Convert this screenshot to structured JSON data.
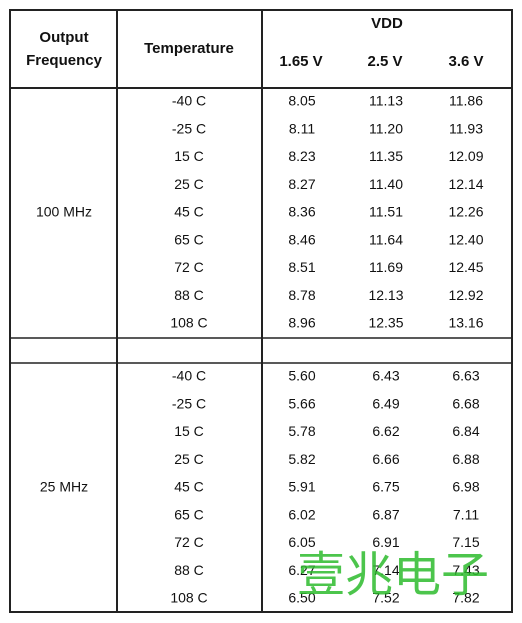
{
  "header": {
    "frequency": [
      "Output",
      "Frequency"
    ],
    "temperature": "Temperature",
    "vdd": "VDD",
    "voltages": [
      "1.65 V",
      "2.5 V",
      "3.6 V"
    ]
  },
  "groups": [
    {
      "frequency": "100 MHz",
      "rows": [
        [
          "-40 C",
          "8.05",
          "11.13",
          "11.86"
        ],
        [
          "-25 C",
          "8.11",
          "11.20",
          "11.93"
        ],
        [
          "15 C",
          "8.23",
          "11.35",
          "12.09"
        ],
        [
          "25 C",
          "8.27",
          "11.40",
          "12.14"
        ],
        [
          "45 C",
          "8.36",
          "11.51",
          "12.26"
        ],
        [
          "65 C",
          "8.46",
          "11.64",
          "12.40"
        ],
        [
          "72 C",
          "8.51",
          "11.69",
          "12.45"
        ],
        [
          "88 C",
          "8.78",
          "12.13",
          "12.92"
        ],
        [
          "108 C",
          "8.96",
          "12.35",
          "13.16"
        ]
      ]
    },
    {
      "frequency": "25 MHz",
      "rows": [
        [
          "-40 C",
          "5.60",
          "6.43",
          "6.63"
        ],
        [
          "-25 C",
          "5.66",
          "6.49",
          "6.68"
        ],
        [
          "15 C",
          "5.78",
          "6.62",
          "6.84"
        ],
        [
          "25 C",
          "5.82",
          "6.66",
          "6.88"
        ],
        [
          "45 C",
          "5.91",
          "6.75",
          "6.98"
        ],
        [
          "65 C",
          "6.02",
          "6.87",
          "7.11"
        ],
        [
          "72 C",
          "6.05",
          "6.91",
          "7.15"
        ],
        [
          "88 C",
          "6.27",
          "7.14",
          "7.43"
        ],
        [
          "108 C",
          "6.50",
          "7.52",
          "7.82"
        ]
      ]
    }
  ],
  "watermark": "壹兆电子"
}
